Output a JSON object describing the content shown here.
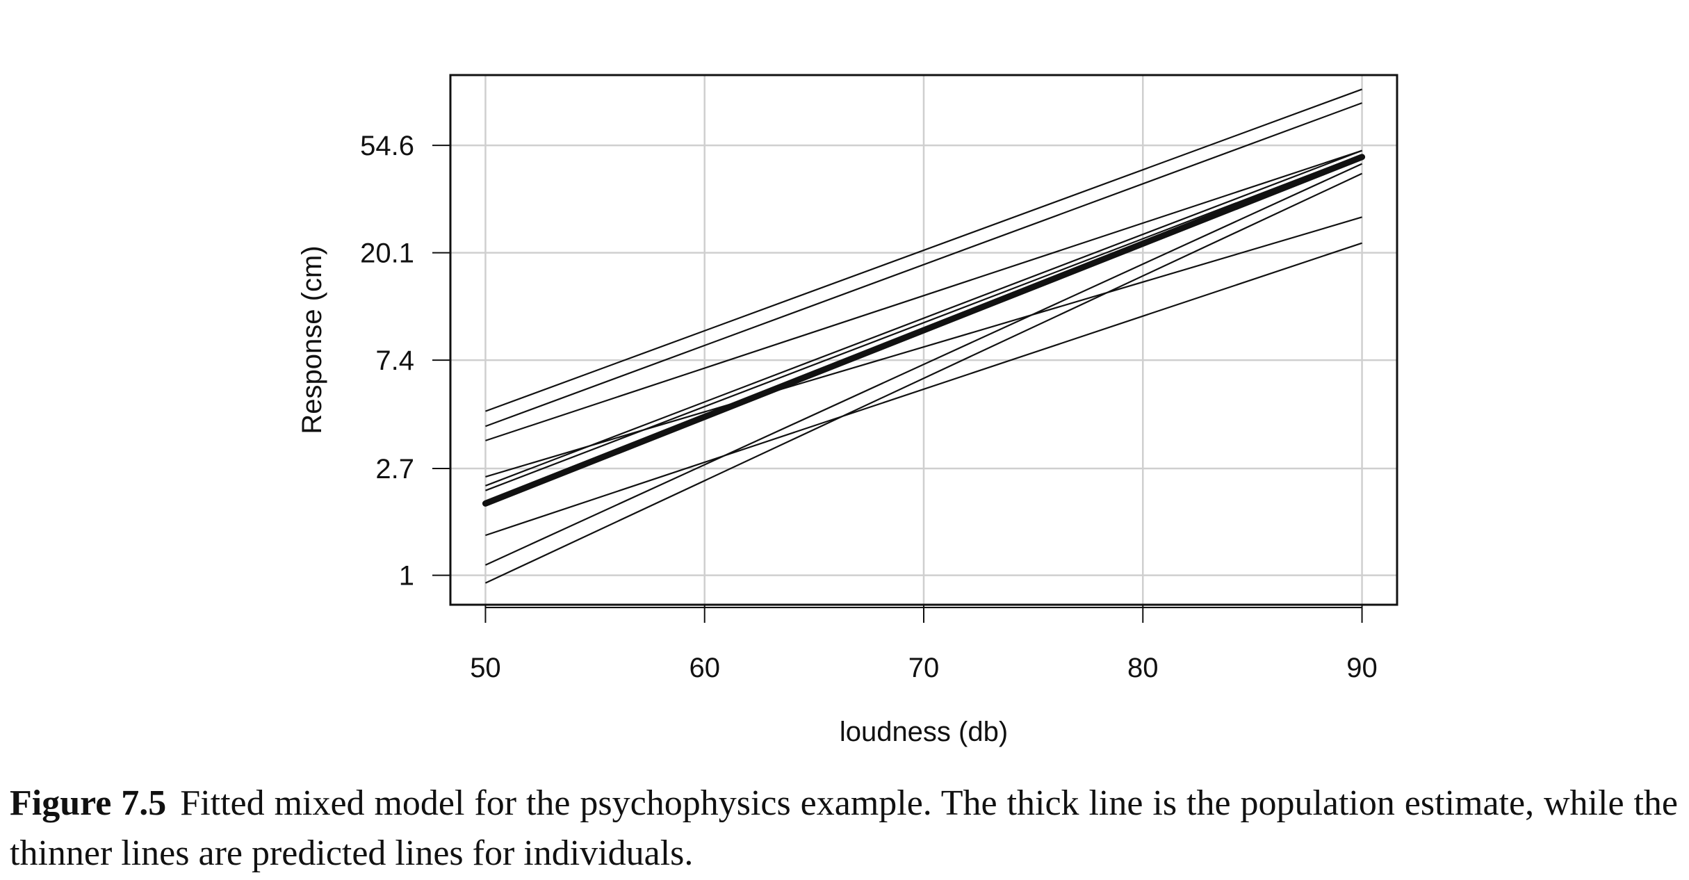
{
  "caption": {
    "label": "Figure 7.5",
    "text": "Fitted mixed model for the psychophysics example. The thick line is the population estimate, while the thinner lines are predicted lines for individuals."
  },
  "chart_data": {
    "type": "line",
    "xlabel": "loudness (db)",
    "ylabel": "Response (cm)",
    "x_ticks": [
      "50",
      "60",
      "70",
      "80",
      "90"
    ],
    "y_ticks": [
      "1",
      "2.7",
      "7.4",
      "20.1",
      "54.6"
    ],
    "y_scale": "log (natural)",
    "xlim": [
      48.4,
      91.6
    ],
    "ylim": [
      0.76,
      105
    ],
    "grid": true,
    "x": [
      50,
      90
    ],
    "population": {
      "description": "thick line",
      "values": [
        1.95,
        49.0
      ]
    },
    "individuals": [
      {
        "values": [
          4.6,
          92
        ]
      },
      {
        "values": [
          4.0,
          81
        ]
      },
      {
        "values": [
          3.5,
          52
        ]
      },
      {
        "values": [
          2.5,
          28
        ]
      },
      {
        "values": [
          2.3,
          52
        ]
      },
      {
        "values": [
          2.2,
          50
        ]
      },
      {
        "values": [
          1.45,
          22
        ]
      },
      {
        "values": [
          1.1,
          46
        ]
      },
      {
        "values": [
          0.93,
          42
        ]
      }
    ],
    "colors": {
      "lines": "#111111",
      "grid": "#cfcfcf",
      "frame": "#111111"
    }
  }
}
